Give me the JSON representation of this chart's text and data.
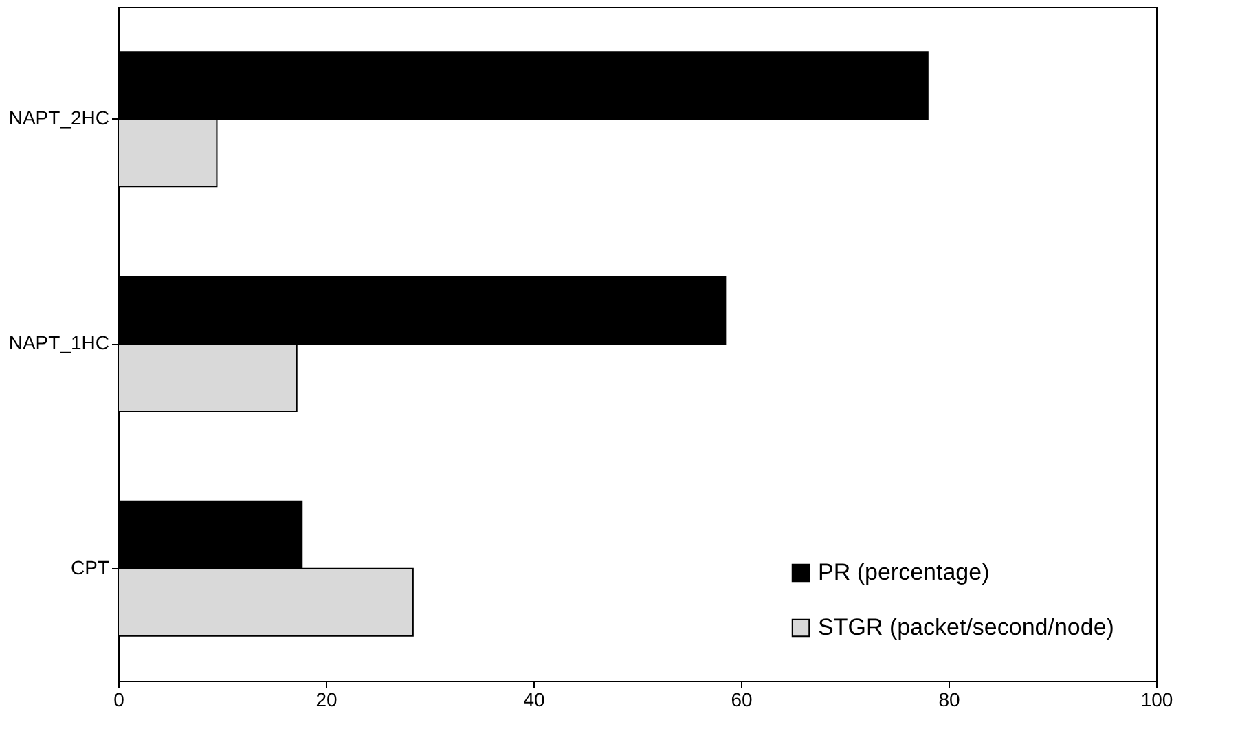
{
  "chart_data": {
    "type": "bar",
    "orientation": "horizontal",
    "categories": [
      "NAPT_2HC",
      "NAPT_1HC",
      "CPT"
    ],
    "series": [
      {
        "name": "PR (percentage)",
        "color": "#000000",
        "values": [
          78.0,
          58.5,
          17.7
        ]
      },
      {
        "name": "STGR (packet/second/node)",
        "color": "#d9d9d9",
        "values": [
          9.5,
          17.2,
          28.4
        ]
      }
    ],
    "xlim": [
      0,
      100
    ],
    "xticks": [
      0,
      20,
      40,
      60,
      80,
      100
    ],
    "grid": false,
    "legend": "bottom right"
  }
}
